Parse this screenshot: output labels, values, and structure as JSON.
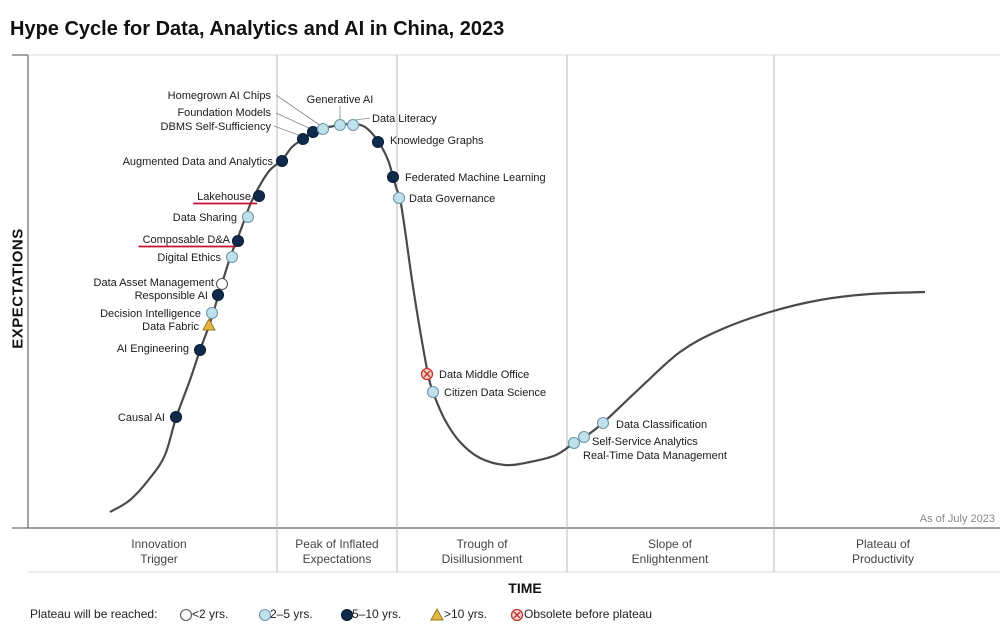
{
  "title": "Hype Cycle for Data, Analytics and AI in China, 2023",
  "y_axis_label": "EXPECTATIONS",
  "x_axis_label": "TIME",
  "as_of": "As of July 2023",
  "phases": [
    {
      "line1": "Innovation",
      "line2": "Trigger"
    },
    {
      "line1": "Peak of Inflated",
      "line2": "Expectations"
    },
    {
      "line1": "Trough of",
      "line2": "Disillusionment"
    },
    {
      "line1": "Slope of",
      "line2": "Enlightenment"
    },
    {
      "line1": "Plateau of",
      "line2": "Productivity"
    }
  ],
  "legend": {
    "prefix": "Plateau will be reached:",
    "items": [
      {
        "key": "lt2",
        "label": "<2 yrs."
      },
      {
        "key": "2to5",
        "label": "2–5 yrs."
      },
      {
        "key": "5to10",
        "label": "5–10 yrs."
      },
      {
        "key": "gt10",
        "label": ">10 yrs."
      },
      {
        "key": "obsolete",
        "label": "Obsolete before plateau"
      }
    ]
  },
  "colors": {
    "lt2": "#ffffff",
    "2to5": "#bfe1ec",
    "5to10": "#0f2a4a",
    "gt10": "#e2b547",
    "obsolete": "#f3d0d0",
    "underline": "#c8102e",
    "curve": "#4a4a4a",
    "grid": "#b8b8b8"
  },
  "technologies": [
    {
      "name": "Causal AI",
      "category": "5to10",
      "underlined": false
    },
    {
      "name": "AI Engineering",
      "category": "5to10",
      "underlined": false
    },
    {
      "name": "Data Fabric",
      "category": "gt10",
      "underlined": false
    },
    {
      "name": "Decision Intelligence",
      "category": "2to5",
      "underlined": false
    },
    {
      "name": "Responsible AI",
      "category": "5to10",
      "underlined": false
    },
    {
      "name": "Data Asset Management",
      "category": "lt2",
      "underlined": false
    },
    {
      "name": "Digital Ethics",
      "category": "2to5",
      "underlined": false
    },
    {
      "name": "Composable D&A",
      "category": "5to10",
      "underlined": true
    },
    {
      "name": "Data Sharing",
      "category": "2to5",
      "underlined": false
    },
    {
      "name": "Lakehouse",
      "category": "5to10",
      "underlined": true
    },
    {
      "name": "Augmented Data and Analytics",
      "category": "5to10",
      "underlined": false
    },
    {
      "name": "DBMS Self-Sufficiency",
      "category": "5to10",
      "underlined": false
    },
    {
      "name": "Foundation Models",
      "category": "5to10",
      "underlined": false
    },
    {
      "name": "Homegrown AI Chips",
      "category": "2to5",
      "underlined": false
    },
    {
      "name": "Generative AI",
      "category": "2to5",
      "underlined": false
    },
    {
      "name": "Data Literacy",
      "category": "2to5",
      "underlined": false
    },
    {
      "name": "Knowledge Graphs",
      "category": "5to10",
      "underlined": false
    },
    {
      "name": "Federated Machine Learning",
      "category": "5to10",
      "underlined": false
    },
    {
      "name": "Data Governance",
      "category": "2to5",
      "underlined": false
    },
    {
      "name": "Data Middle Office",
      "category": "obsolete",
      "underlined": false
    },
    {
      "name": "Citizen Data Science",
      "category": "2to5",
      "underlined": false
    },
    {
      "name": "Real-Time Data Management",
      "category": "2to5",
      "underlined": false
    },
    {
      "name": "Self-Service Analytics",
      "category": "2to5",
      "underlined": false
    },
    {
      "name": "Data Classification",
      "category": "2to5",
      "underlined": false
    }
  ]
}
